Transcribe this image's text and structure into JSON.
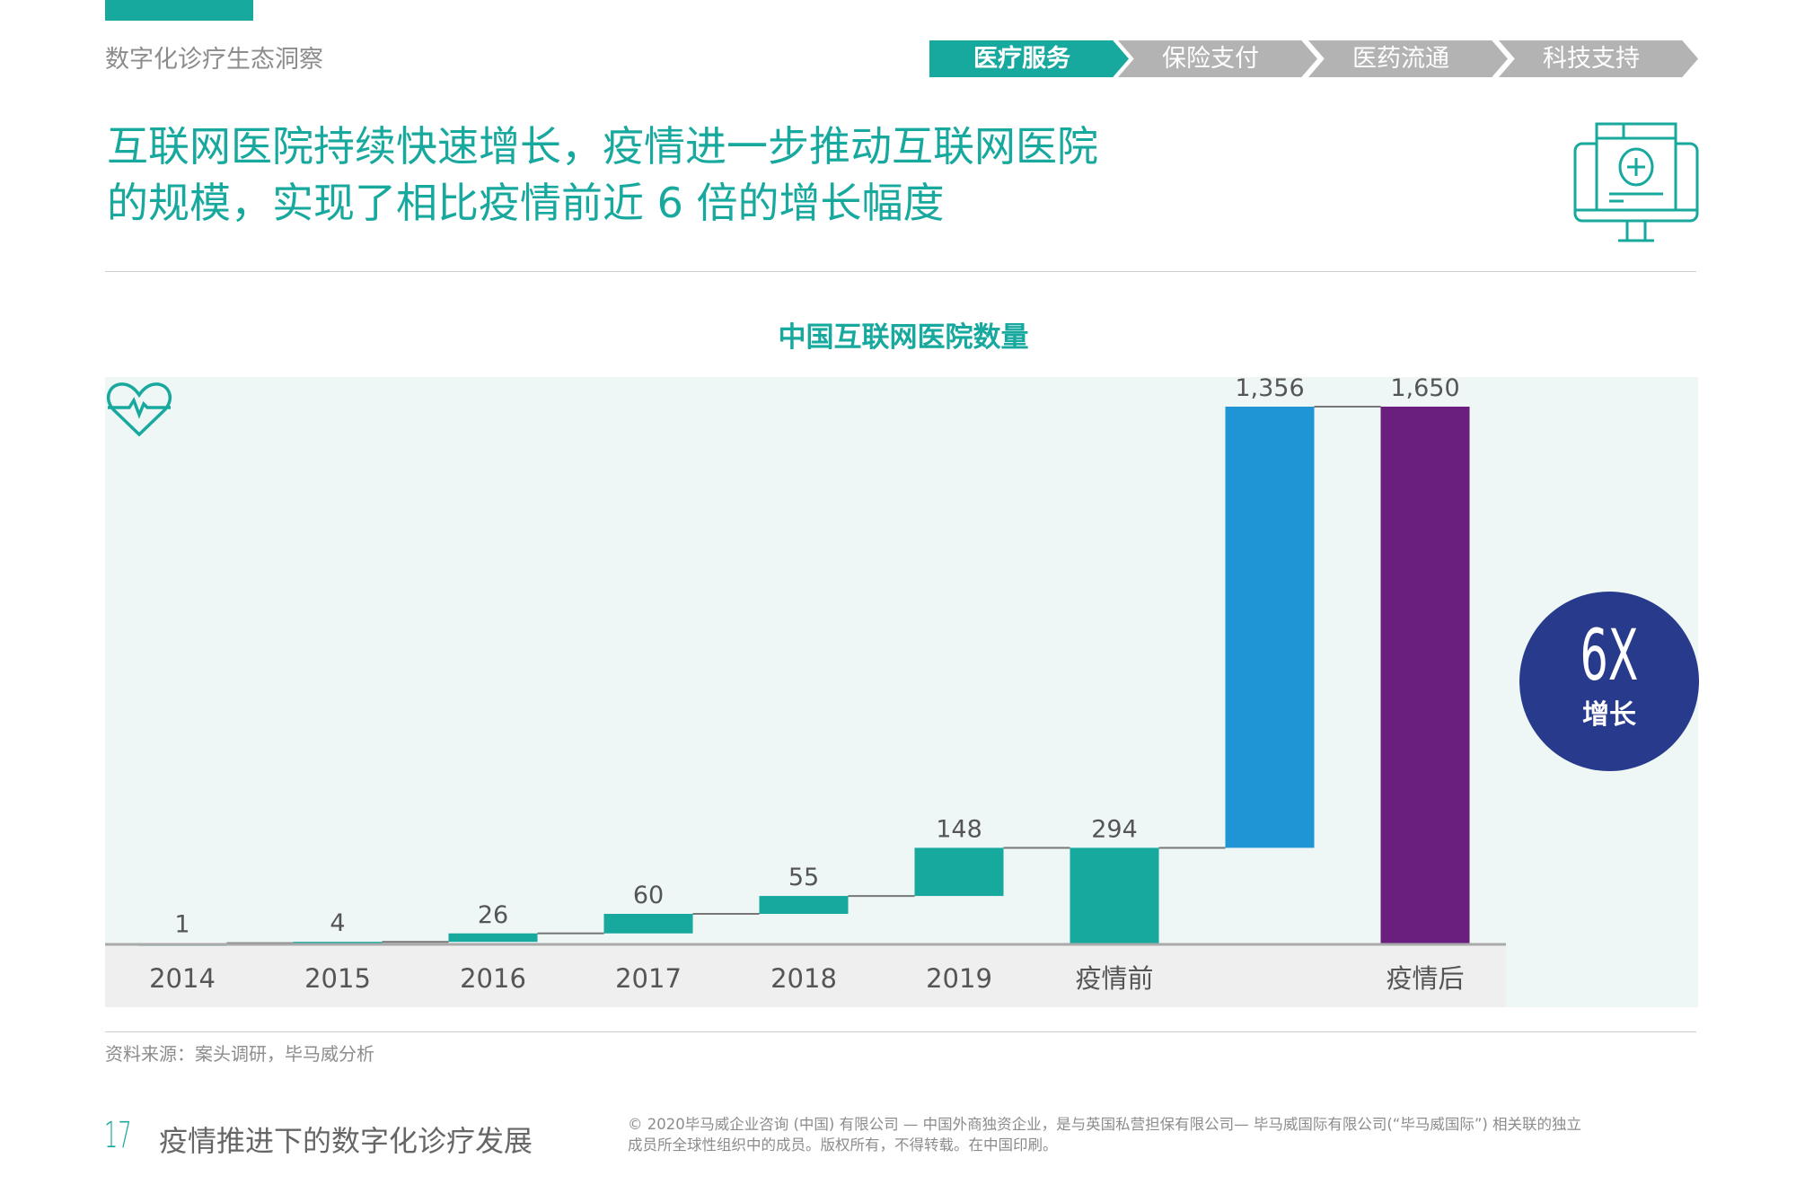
{
  "header": {
    "section": "数字化诊疗生态洞察",
    "tabs": [
      {
        "label": "医疗服务",
        "active": true
      },
      {
        "label": "保险支付",
        "active": false
      },
      {
        "label": "医药流通",
        "active": false
      },
      {
        "label": "科技支持",
        "active": false
      }
    ]
  },
  "title": {
    "line1": "互联网医院持续快速增长，疫情进一步推动互联网医院",
    "line2": "的规模，实现了相比疫情前近 6 倍的增长幅度"
  },
  "badge": {
    "value": "6X",
    "label": "增长"
  },
  "source": "资料来源：案头调研，毕马威分析",
  "footer": {
    "page": "17",
    "title": "疫情推进下的数字化诊疗发展",
    "copyright1": "© 2020毕马威企业咨询 (中国) 有限公司 — 中国外商独资企业，是与英国私营担保有限公司— 毕马威国际有限公司(“毕马威国际”) 相关联的独立",
    "copyright2": "成员所全球性组织中的成员。版权所有，不得转载。在中国印刷。"
  },
  "colors": {
    "teal": "#17a89e",
    "blue": "#1f95d6",
    "purple": "#6a1f7f",
    "navy": "#283a8c"
  },
  "chart_data": {
    "type": "bar",
    "subtype": "waterfall",
    "title": "中国互联网医院数量",
    "categories": [
      "2014",
      "2015",
      "2016",
      "2017",
      "2018",
      "2019",
      "疫情前",
      "",
      "疫情后"
    ],
    "values": [
      1,
      4,
      26,
      60,
      55,
      148,
      294,
      1356,
      1650
    ],
    "labels": [
      "1",
      "4",
      "26",
      "60",
      "55",
      "148",
      "294",
      "1,356",
      "1,650"
    ],
    "kinds": [
      "delta",
      "delta",
      "delta",
      "delta",
      "delta",
      "delta",
      "total",
      "delta",
      "total"
    ],
    "bar_colors": [
      "#17a89e",
      "#17a89e",
      "#17a89e",
      "#17a89e",
      "#17a89e",
      "#17a89e",
      "#17a89e",
      "#1f95d6",
      "#6a1f7f"
    ],
    "ylim": [
      0,
      1650
    ],
    "grid": false
  }
}
